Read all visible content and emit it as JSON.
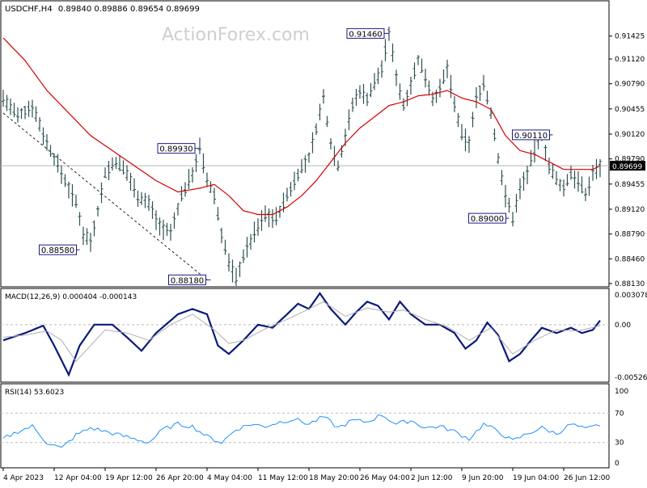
{
  "header": {
    "symbol": "USDCHF,H4",
    "ohlc": "0.89840 0.89886 0.89654 0.89699"
  },
  "watermark": "ActionForex.com",
  "colors": {
    "bars": "#2f4f4f",
    "ma": "#d40000",
    "macd": "#0a1a7a",
    "signal": "#b0b0b0",
    "label_border": "#1a1a8a",
    "current_price_bg": "#000000",
    "grid": "#c8c8c8"
  },
  "chart_data": [
    {
      "type": "ohlc",
      "title": "USDCHF,H4",
      "ylim": [
        0.8813,
        0.9169
      ],
      "ytick_labels": [
        "0.91425",
        "0.91120",
        "0.90790",
        "0.90455",
        "0.90120",
        "0.89790",
        "0.89455",
        "0.89120",
        "0.88790",
        "0.88460",
        "0.88130"
      ],
      "current_price": "0.89699",
      "xtick_labels": [
        "4 Apr 2023",
        "12 Apr 04:00",
        "19 Apr 12:00",
        "26 Apr 20:00",
        "4 May 04:00",
        "11 May 12:00",
        "18 May 20:00",
        "26 May 04:00",
        "2 Jun 12:00",
        "9 Jun 20:00",
        "19 Jun 04:00",
        "26 Jun 12:00"
      ],
      "annotations": [
        {
          "text": "0.88580",
          "price": 0.8858
        },
        {
          "text": "0.89930",
          "price": 0.8993
        },
        {
          "text": "0.88180",
          "price": 0.8818
        },
        {
          "text": "0.91460",
          "price": 0.9146
        },
        {
          "text": "0.90110",
          "price": 0.9011
        },
        {
          "text": "0.89000",
          "price": 0.89
        }
      ],
      "price_path": [
        [
          0,
          0.906
        ],
        [
          4,
          0.9035
        ],
        [
          8,
          0.905
        ],
        [
          12,
          0.9
        ],
        [
          16,
          0.896
        ],
        [
          20,
          0.892
        ],
        [
          22,
          0.888
        ],
        [
          24,
          0.887
        ],
        [
          26,
          0.891
        ],
        [
          28,
          0.896
        ],
        [
          31,
          0.8975
        ],
        [
          34,
          0.896
        ],
        [
          37,
          0.893
        ],
        [
          40,
          0.892
        ],
        [
          43,
          0.889
        ],
        [
          46,
          0.888
        ],
        [
          49,
          0.893
        ],
        [
          52,
          0.896
        ],
        [
          54,
          0.8993
        ],
        [
          56,
          0.895
        ],
        [
          58,
          0.893
        ],
        [
          60,
          0.888
        ],
        [
          62,
          0.884
        ],
        [
          64,
          0.882
        ],
        [
          66,
          0.885
        ],
        [
          69,
          0.888
        ],
        [
          72,
          0.8905
        ],
        [
          75,
          0.89
        ],
        [
          78,
          0.893
        ],
        [
          81,
          0.896
        ],
        [
          84,
          0.898
        ],
        [
          86,
          0.902
        ],
        [
          88,
          0.906
        ],
        [
          90,
          0.9
        ],
        [
          92,
          0.897
        ],
        [
          94,
          0.901
        ],
        [
          96,
          0.905
        ],
        [
          98,
          0.907
        ],
        [
          100,
          0.906
        ],
        [
          102,
          0.908
        ],
        [
          104,
          0.91
        ],
        [
          106,
          0.9146
        ],
        [
          108,
          0.909
        ],
        [
          110,
          0.905
        ],
        [
          112,
          0.908
        ],
        [
          114,
          0.911
        ],
        [
          116,
          0.909
        ],
        [
          118,
          0.906
        ],
        [
          120,
          0.907
        ],
        [
          122,
          0.91
        ],
        [
          124,
          0.905
        ],
        [
          126,
          0.901
        ],
        [
          128,
          0.9
        ],
        [
          130,
          0.906
        ],
        [
          132,
          0.908
        ],
        [
          134,
          0.904
        ],
        [
          136,
          0.898
        ],
        [
          138,
          0.893
        ],
        [
          140,
          0.89
        ],
        [
          142,
          0.894
        ],
        [
          144,
          0.896
        ],
        [
          146,
          0.899
        ],
        [
          148,
          0.9011
        ],
        [
          150,
          0.897
        ],
        [
          152,
          0.895
        ],
        [
          154,
          0.894
        ],
        [
          156,
          0.896
        ],
        [
          158,
          0.895
        ],
        [
          160,
          0.893
        ],
        [
          162,
          0.896
        ],
        [
          164,
          0.897
        ]
      ],
      "ma_path": [
        [
          0,
          0.914
        ],
        [
          6,
          0.911
        ],
        [
          12,
          0.907
        ],
        [
          18,
          0.904
        ],
        [
          24,
          0.901
        ],
        [
          30,
          0.899
        ],
        [
          36,
          0.897
        ],
        [
          42,
          0.895
        ],
        [
          48,
          0.8935
        ],
        [
          54,
          0.894
        ],
        [
          58,
          0.8945
        ],
        [
          62,
          0.893
        ],
        [
          66,
          0.891
        ],
        [
          70,
          0.8905
        ],
        [
          74,
          0.8905
        ],
        [
          78,
          0.8915
        ],
        [
          82,
          0.893
        ],
        [
          86,
          0.895
        ],
        [
          90,
          0.8975
        ],
        [
          94,
          0.9
        ],
        [
          98,
          0.902
        ],
        [
          102,
          0.9035
        ],
        [
          106,
          0.905
        ],
        [
          110,
          0.9055
        ],
        [
          114,
          0.9063
        ],
        [
          118,
          0.9065
        ],
        [
          122,
          0.907
        ],
        [
          126,
          0.906
        ],
        [
          130,
          0.9055
        ],
        [
          134,
          0.9045
        ],
        [
          138,
          0.901
        ],
        [
          142,
          0.899
        ],
        [
          146,
          0.8985
        ],
        [
          150,
          0.8975
        ],
        [
          154,
          0.8965
        ],
        [
          158,
          0.8965
        ],
        [
          162,
          0.8965
        ],
        [
          164,
          0.897
        ]
      ]
    },
    {
      "type": "line",
      "title": "MACD(12,26,9) 0.000404 -0.000143",
      "ylim": [
        -0.005268,
        0.003078
      ],
      "ytick_labels": [
        "0.003078",
        "0.00",
        "-0.005268"
      ],
      "series": [
        {
          "name": "MACD",
          "values": [
            [
              0,
              -0.0015
            ],
            [
              6,
              -0.0008
            ],
            [
              11,
              -0.0001
            ],
            [
              14,
              -0.002
            ],
            [
              18,
              -0.0048
            ],
            [
              21,
              -0.002
            ],
            [
              25,
              0.0
            ],
            [
              30,
              0.0
            ],
            [
              34,
              -0.0012
            ],
            [
              38,
              -0.0025
            ],
            [
              42,
              -0.0008
            ],
            [
              48,
              0.001
            ],
            [
              52,
              0.0015
            ],
            [
              56,
              0.001
            ],
            [
              59,
              -0.002
            ],
            [
              62,
              -0.0028
            ],
            [
              66,
              -0.0015
            ],
            [
              70,
              0.0
            ],
            [
              74,
              -0.0003
            ],
            [
              78,
              0.001
            ],
            [
              81,
              0.002
            ],
            [
              84,
              0.0015
            ],
            [
              87,
              0.003
            ],
            [
              90,
              0.0015
            ],
            [
              94,
              0.0
            ],
            [
              97,
              0.0012
            ],
            [
              100,
              0.0022
            ],
            [
              103,
              0.0018
            ],
            [
              106,
              0.0005
            ],
            [
              109,
              0.0022
            ],
            [
              112,
              0.001
            ],
            [
              116,
              0.0
            ],
            [
              120,
              0.0
            ],
            [
              124,
              -0.0008
            ],
            [
              127,
              -0.0023
            ],
            [
              130,
              -0.0015
            ],
            [
              133,
              0.0002
            ],
            [
              136,
              -0.001
            ],
            [
              139,
              -0.0035
            ],
            [
              142,
              -0.0028
            ],
            [
              145,
              -0.0015
            ],
            [
              148,
              -0.0003
            ],
            [
              152,
              -0.0008
            ],
            [
              156,
              -0.0003
            ],
            [
              159,
              -0.0008
            ],
            [
              162,
              -0.0005
            ],
            [
              164,
              0.0004
            ]
          ]
        },
        {
          "name": "Signal",
          "values": [
            [
              0,
              -0.0012
            ],
            [
              6,
              -0.001
            ],
            [
              12,
              -0.0006
            ],
            [
              16,
              -0.0015
            ],
            [
              20,
              -0.0035
            ],
            [
              24,
              -0.002
            ],
            [
              28,
              -0.0005
            ],
            [
              34,
              -0.0008
            ],
            [
              40,
              -0.0015
            ],
            [
              46,
              0.0
            ],
            [
              52,
              0.001
            ],
            [
              58,
              -0.0005
            ],
            [
              62,
              -0.0018
            ],
            [
              66,
              -0.0015
            ],
            [
              72,
              -0.0004
            ],
            [
              78,
              0.0005
            ],
            [
              84,
              0.0015
            ],
            [
              88,
              0.0022
            ],
            [
              94,
              0.0008
            ],
            [
              100,
              0.0016
            ],
            [
              106,
              0.0012
            ],
            [
              110,
              0.0014
            ],
            [
              116,
              0.0005
            ],
            [
              122,
              -0.0002
            ],
            [
              128,
              -0.0015
            ],
            [
              134,
              -0.0003
            ],
            [
              140,
              -0.0028
            ],
            [
              146,
              -0.0015
            ],
            [
              152,
              -0.0005
            ],
            [
              158,
              -0.0006
            ],
            [
              164,
              -0.0001
            ]
          ]
        }
      ]
    },
    {
      "type": "line",
      "title": "RSI(14) 53.6023",
      "ylim": [
        0,
        100
      ],
      "ytick_labels": [
        "100",
        "70",
        "30",
        "0"
      ],
      "levels": [
        70,
        30
      ],
      "series": [
        {
          "name": "RSI",
          "values": [
            [
              0,
              35
            ],
            [
              4,
              45
            ],
            [
              8,
              52
            ],
            [
              12,
              30
            ],
            [
              16,
              22
            ],
            [
              20,
              40
            ],
            [
              24,
              50
            ],
            [
              28,
              45
            ],
            [
              32,
              40
            ],
            [
              36,
              35
            ],
            [
              40,
              30
            ],
            [
              44,
              48
            ],
            [
              48,
              55
            ],
            [
              52,
              52
            ],
            [
              56,
              38
            ],
            [
              60,
              30
            ],
            [
              64,
              48
            ],
            [
              68,
              55
            ],
            [
              72,
              52
            ],
            [
              76,
              58
            ],
            [
              80,
              62
            ],
            [
              84,
              55
            ],
            [
              88,
              65
            ],
            [
              92,
              50
            ],
            [
              96,
              60
            ],
            [
              100,
              58
            ],
            [
              104,
              68
            ],
            [
              108,
              55
            ],
            [
              112,
              60
            ],
            [
              116,
              50
            ],
            [
              120,
              52
            ],
            [
              124,
              45
            ],
            [
              128,
              35
            ],
            [
              132,
              55
            ],
            [
              136,
              45
            ],
            [
              140,
              32
            ],
            [
              144,
              42
            ],
            [
              148,
              50
            ],
            [
              152,
              42
            ],
            [
              156,
              55
            ],
            [
              160,
              48
            ],
            [
              164,
              54
            ]
          ]
        }
      ]
    }
  ]
}
